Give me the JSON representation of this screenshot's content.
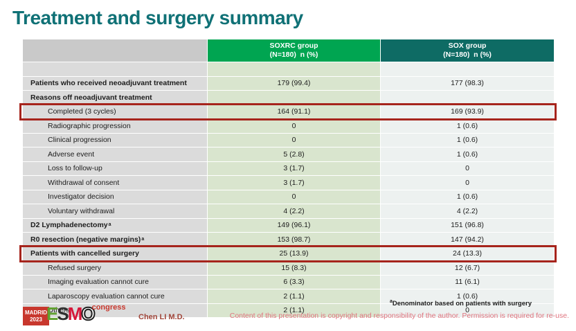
{
  "slide": {
    "title": "Treatment and surgery summary"
  },
  "table": {
    "header": {
      "col1_line1": "SOXRC group",
      "col1_line2": "(N=180)  n (%)",
      "col2_line1": "SOX group",
      "col2_line2": "(N=180)  n (%)"
    },
    "rows": [
      {
        "label": "Patients who received neoadjuvant treatment",
        "bold": true,
        "indent": false,
        "soxrc": "179 (99.4)",
        "sox": "177 (98.3)",
        "highlight": false
      },
      {
        "label": "Reasons off neoadjuvant treatment",
        "bold": true,
        "indent": false,
        "soxrc": "",
        "sox": "",
        "highlight": false
      },
      {
        "label": "Completed (3 cycles)",
        "bold": false,
        "indent": true,
        "soxrc": "164 (91.1)",
        "sox": "169 (93.9)",
        "highlight": true
      },
      {
        "label": "Radiographic progression",
        "bold": false,
        "indent": true,
        "soxrc": "0",
        "sox": "1 (0.6)",
        "highlight": false
      },
      {
        "label": "Clinical progression",
        "bold": false,
        "indent": true,
        "soxrc": "0",
        "sox": "1 (0.6)",
        "highlight": false
      },
      {
        "label": "Adverse event",
        "bold": false,
        "indent": true,
        "soxrc": "5 (2.8)",
        "sox": "1 (0.6)",
        "highlight": false
      },
      {
        "label": "Loss to follow-up",
        "bold": false,
        "indent": true,
        "soxrc": "3 (1.7)",
        "sox": "0",
        "highlight": false
      },
      {
        "label": "Withdrawal of consent",
        "bold": false,
        "indent": true,
        "soxrc": "3 (1.7)",
        "sox": "0",
        "highlight": false
      },
      {
        "label": "Investigator decision",
        "bold": false,
        "indent": true,
        "soxrc": "0",
        "sox": "1 (0.6)",
        "highlight": false
      },
      {
        "label": "Voluntary withdrawal",
        "bold": false,
        "indent": true,
        "soxrc": "4 (2.2)",
        "sox": "4 (2.2)",
        "highlight": false
      },
      {
        "label": "D2 Lymphadenectomy",
        "sup": "a",
        "bold": true,
        "indent": false,
        "soxrc": "149 (96.1)",
        "sox": "151 (96.8)",
        "highlight": false
      },
      {
        "label": "R0 resection (negative margins)",
        "sup": "a",
        "bold": true,
        "indent": false,
        "soxrc": "153 (98.7)",
        "sox": "147 (94.2)",
        "highlight": false
      },
      {
        "label": "Patients with cancelled surgery",
        "bold": true,
        "indent": false,
        "soxrc": "25 (13.9)",
        "sox": "24 (13.3)",
        "highlight": true
      },
      {
        "label": "Refused surgery",
        "bold": false,
        "indent": true,
        "soxrc": "15 (8.3)",
        "sox": "12 (6.7)",
        "highlight": false
      },
      {
        "label": "Imaging evaluation cannot cure",
        "bold": false,
        "indent": true,
        "soxrc": "6 (3.3)",
        "sox": "11 (6.1)",
        "highlight": false
      },
      {
        "label": "Laparoscopy evaluation cannot cure",
        "bold": false,
        "indent": true,
        "soxrc": "2 (1.1)",
        "sox": "1 (0.6)",
        "highlight": false
      },
      {
        "label": "Others",
        "bold": false,
        "indent": true,
        "soxrc": "2 (1.1)",
        "sox": "0",
        "highlight": false
      }
    ]
  },
  "footer": {
    "footnote_sup": "a",
    "footnote": "Denominator based on patients with surgery",
    "presenter": "Chen LI M.D.",
    "copyright": "Content of this presentation is copyright and responsibility of the author. Permission is required for re-use.",
    "logo": {
      "city": "MADRID",
      "year": "2023",
      "e": "E",
      "s": "S",
      "m": "M",
      "o": "O",
      "congress": "congress"
    }
  },
  "colors": {
    "title_teal": "#107176",
    "header_green": "#00a551",
    "header_teal": "#0e6b64",
    "highlight_red": "#a6241c",
    "copyright_pink": "#e0747f"
  }
}
